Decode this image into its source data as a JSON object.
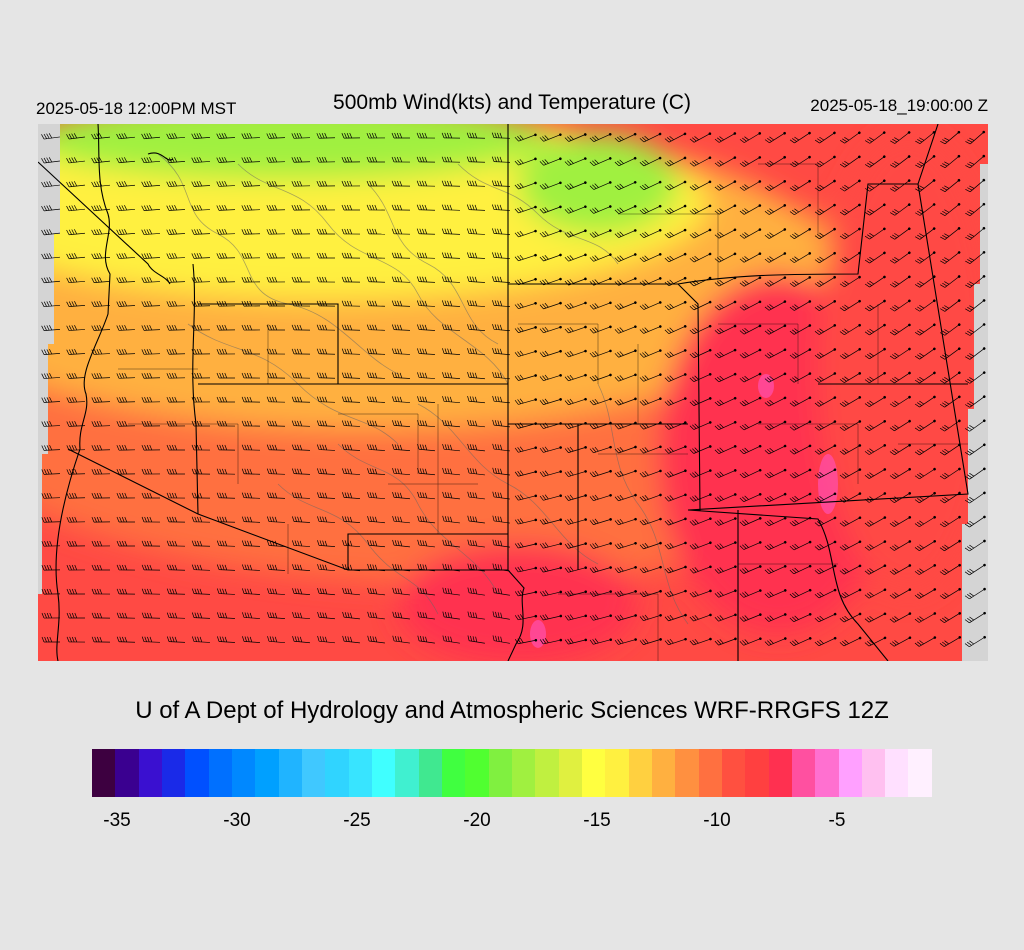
{
  "header": {
    "local_time": "2025-05-18 12:00PM MST",
    "title": "500mb Wind(kts) and Temperature (C)",
    "utc_time": "2025-05-18_19:00:00 Z"
  },
  "credit": "U of A Dept of Hydrology and Atmospheric Sciences WRF-RRGFS 12Z",
  "colorbar": {
    "colors": [
      "#3d0040",
      "#3a0090",
      "#3a10d0",
      "#1a2ae8",
      "#0050ff",
      "#0070ff",
      "#0088ff",
      "#00a0ff",
      "#20b4ff",
      "#40c8ff",
      "#30d4ff",
      "#38e4ff",
      "#40ffff",
      "#40f0d0",
      "#40e890",
      "#40ff40",
      "#50ff30",
      "#80f040",
      "#a0f040",
      "#c0f040",
      "#e0f040",
      "#ffff40",
      "#fff040",
      "#ffd040",
      "#ffb040",
      "#ff9040",
      "#ff7040",
      "#ff5040",
      "#ff4040",
      "#ff3050",
      "#ff50a0",
      "#ff70d0",
      "#ffa0ff",
      "#ffc0f0",
      "#ffe0ff",
      "#fff0ff"
    ],
    "tick_labels": [
      "-35",
      "-30",
      "-25",
      "-20",
      "-15",
      "-10",
      "-5"
    ]
  },
  "map": {
    "variable": "500mb temperature (C) shaded, wind barbs (kts)",
    "colors": {
      "cold": "#a0f040",
      "cool": "#fff040",
      "mild": "#ffb040",
      "warm": "#ff7040",
      "warmer": "#ff4a44",
      "hot": "#ff3050",
      "hottest": "#ff50b0",
      "border": "#000000",
      "terrain": "#666666"
    }
  }
}
